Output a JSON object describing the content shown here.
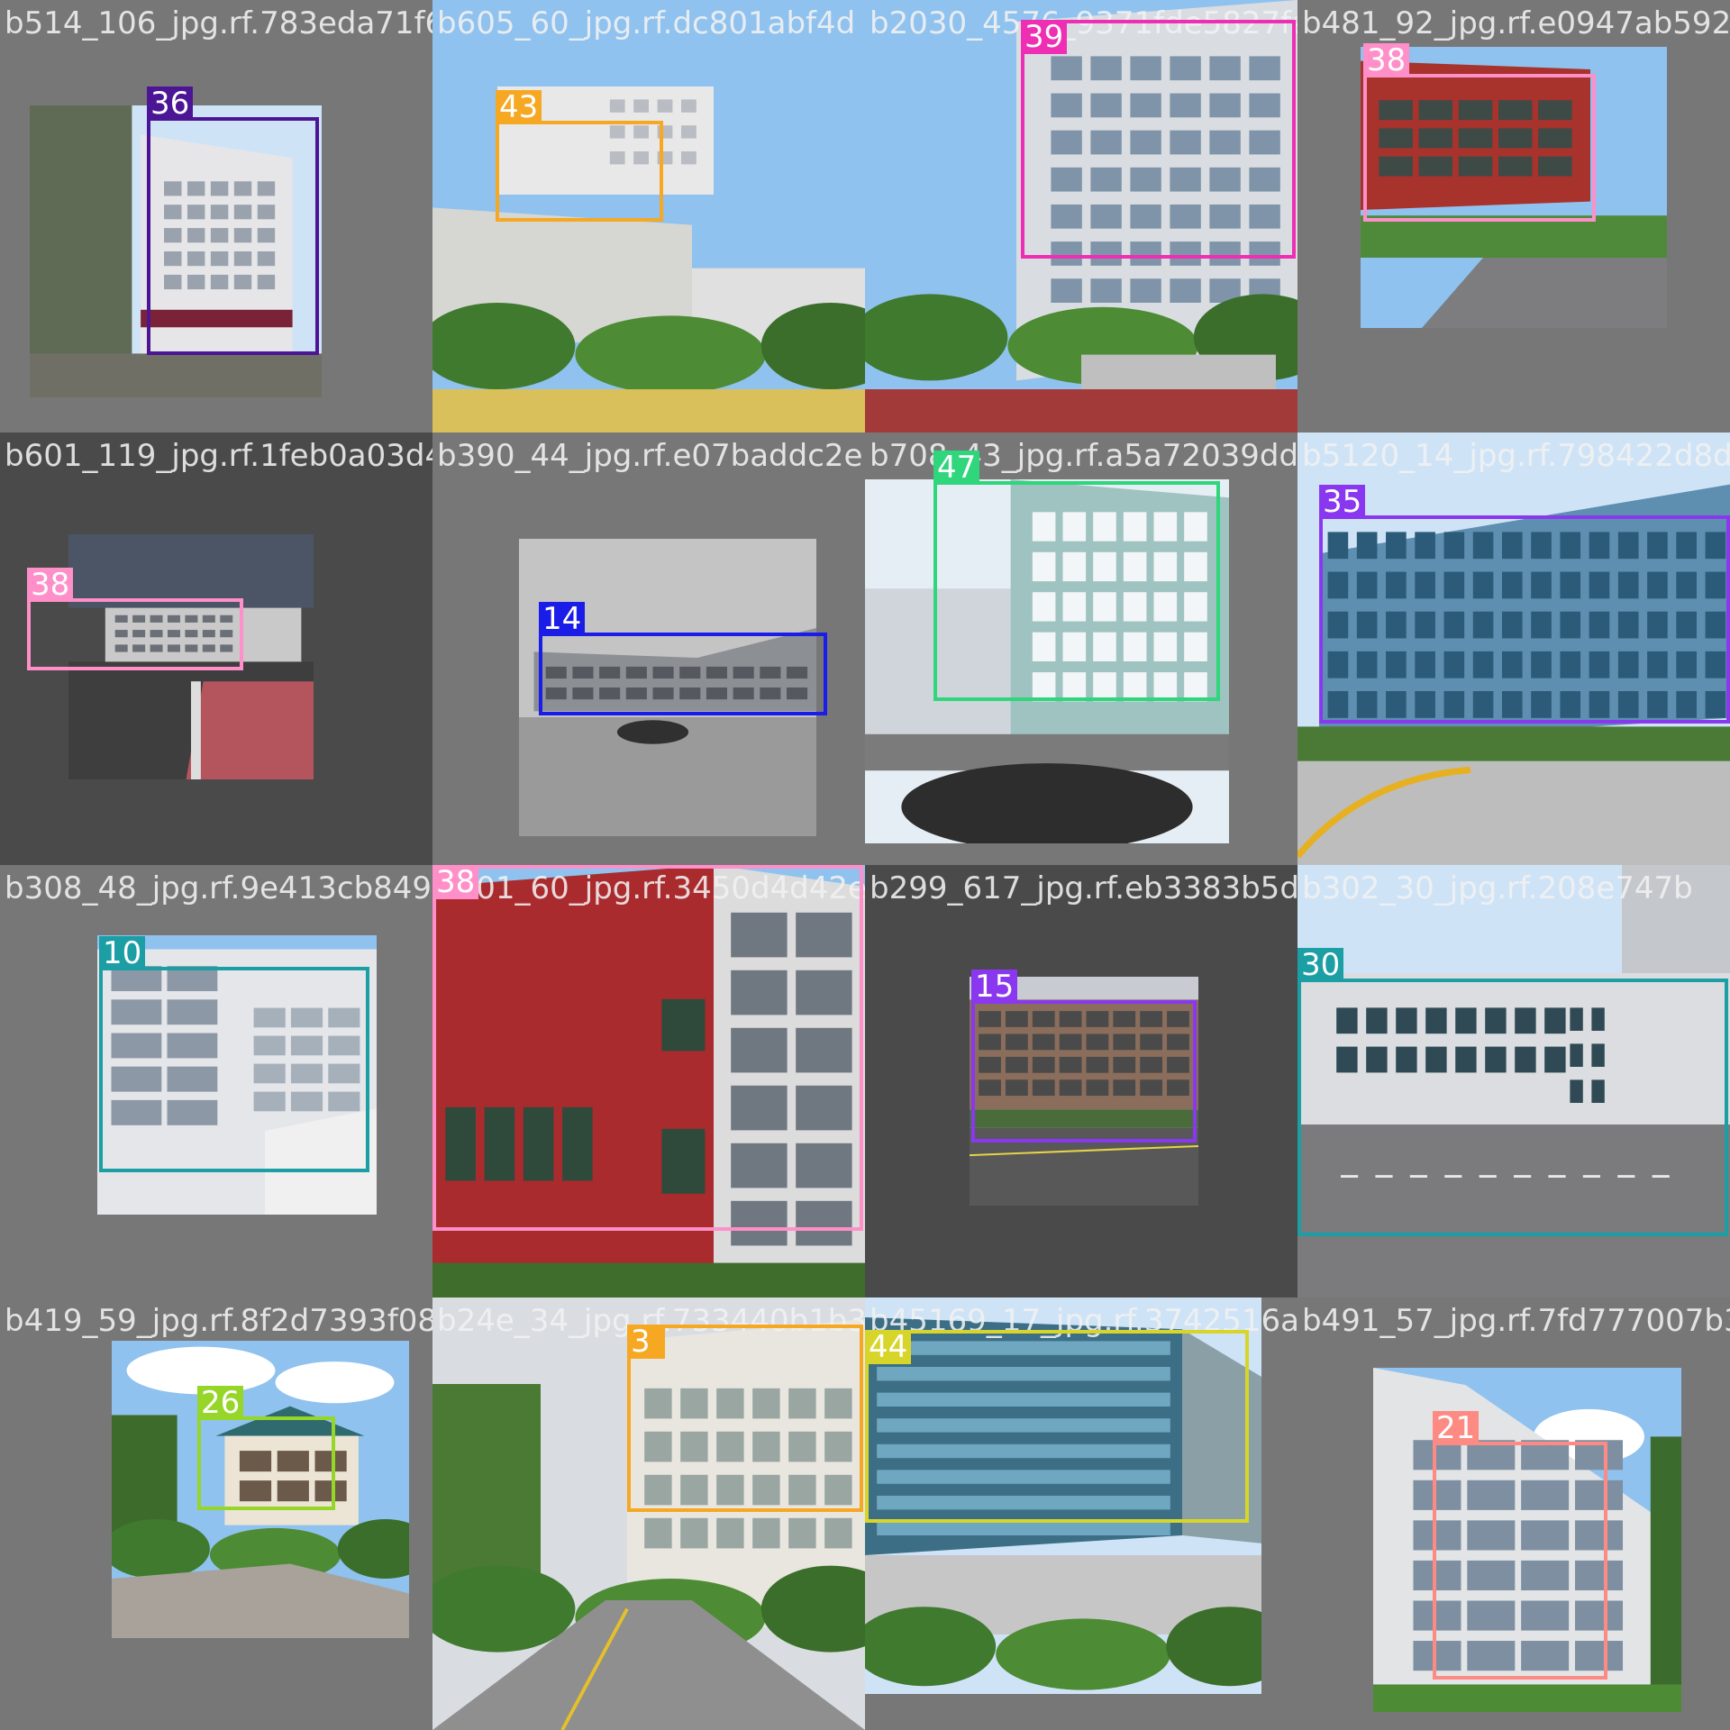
{
  "tiles": [
    {
      "filename": "b514_106_jpg.rf.783eda71f6b7f50_e0f7j1221dbc801abf4d",
      "label": "36",
      "color": "#4b1596",
      "bg": "#777777",
      "photo": "white-building"
    },
    {
      "filename": "b605_60_jpg.rf.dc801abf4d",
      "label": "43",
      "color": "#f6a823",
      "bg": "#777777",
      "photo": "roof-courtyard"
    },
    {
      "filename": "b2030_4576_9371fde5827fad",
      "label": "39",
      "color": "#ee2fb4",
      "bg": "#777777",
      "photo": "tall-white-building"
    },
    {
      "filename": "b481_92_jpg.rf.e0947ab592",
      "label": "38",
      "color": "#fe8fc8",
      "bg": "#777777",
      "photo": "red-tile-building"
    },
    {
      "filename": "b601_119_jpg.rf.1feb0a03d4e399c44994cf107baddc2e",
      "label": "38",
      "color": "#fe8fc8",
      "bg": "#4a4a4a",
      "photo": "parking-lot"
    },
    {
      "filename": "b390_44_jpg.rf.e07baddc2e",
      "label": "14",
      "color": "#1a1ce7",
      "bg": "#777777",
      "photo": "grey-wing"
    },
    {
      "filename": "b708_43_jpg.rf.a5a72039ddfb",
      "label": "47",
      "color": "#2fd67b",
      "bg": "#777777",
      "photo": "teal-building"
    },
    {
      "filename": "b5120_14_jpg.rf.798422d8d55",
      "label": "35",
      "color": "#8a38ef",
      "bg": "#777777",
      "photo": "glass-building"
    },
    {
      "filename": "b308_48_jpg.rf.9e413cb849b60_60_jpg.rf.d0d42e",
      "label": "10",
      "color": "#1b9ea4",
      "bg": "#777777",
      "photo": "white-stairs"
    },
    {
      "filename": "b601_60_jpg.rf.3450d4d42e",
      "label": "38",
      "color": "#fe8fc8",
      "bg": "#777777",
      "photo": "red-wall-closeup"
    },
    {
      "filename": "b299_617_jpg.rf.eb3383b5da",
      "label": "15",
      "color": "#8a38ef",
      "bg": "#4a4a4a",
      "photo": "brown-building"
    },
    {
      "filename": "b302_30_jpg.rf.208e747b",
      "label": "30",
      "color": "#1b9ea4",
      "bg": "#777777",
      "photo": "wide-grey-building"
    },
    {
      "filename": "b419_59_jpg.rf.8f2d7393f08b24e9a34e261733440b1b3",
      "label": "26",
      "color": "#96d629",
      "bg": "#777777",
      "photo": "pavilion"
    },
    {
      "filename": "b24e_34_jpg.rf.733440b1b3",
      "label": "3",
      "color": "#f6a823",
      "bg": "#777777",
      "photo": "street-building"
    },
    {
      "filename": "b45169_17_jpg.rf.3742516af4",
      "label": "44",
      "color": "#d8d52a",
      "bg": "#777777",
      "photo": "glass-strip-building"
    },
    {
      "filename": "b491_57_jpg.rf.7fd777007b39",
      "label": "21",
      "color": "#fe8a84",
      "bg": "#777777",
      "photo": "tall-wing"
    }
  ]
}
